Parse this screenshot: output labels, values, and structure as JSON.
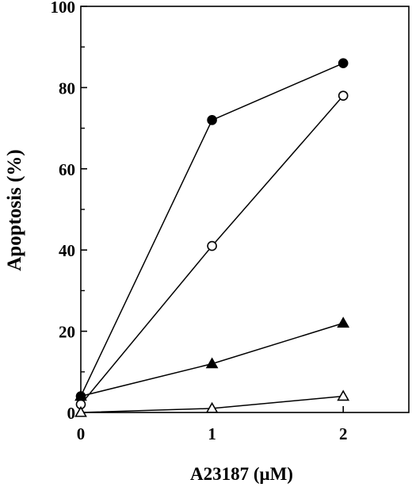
{
  "chart_data": {
    "type": "line",
    "title": "",
    "xlabel": "A23187  (μM)",
    "ylabel": "Apoptosis  (%)",
    "xlim": [
      0,
      2.5
    ],
    "ylim": [
      0,
      100
    ],
    "x_ticks": [
      0,
      1,
      2
    ],
    "y_ticks": [
      0,
      20,
      40,
      60,
      80,
      100
    ],
    "y_minor_ticks": [
      10,
      30,
      50,
      70,
      90
    ],
    "grid": false,
    "legend": "none",
    "series": [
      {
        "marker": "filled-circle",
        "x": [
          0,
          1,
          2
        ],
        "y": [
          4,
          72,
          86
        ]
      },
      {
        "marker": "open-circle",
        "x": [
          0,
          1,
          2
        ],
        "y": [
          2,
          41,
          78
        ]
      },
      {
        "marker": "filled-triangle",
        "x": [
          0,
          1,
          2
        ],
        "y": [
          4,
          12,
          22
        ]
      },
      {
        "marker": "open-triangle",
        "x": [
          0,
          1,
          2
        ],
        "y": [
          0,
          1,
          4
        ]
      }
    ],
    "colors": {
      "line": "#000000",
      "marker_fill": "#000000",
      "marker_open_fill": "#ffffff"
    }
  }
}
